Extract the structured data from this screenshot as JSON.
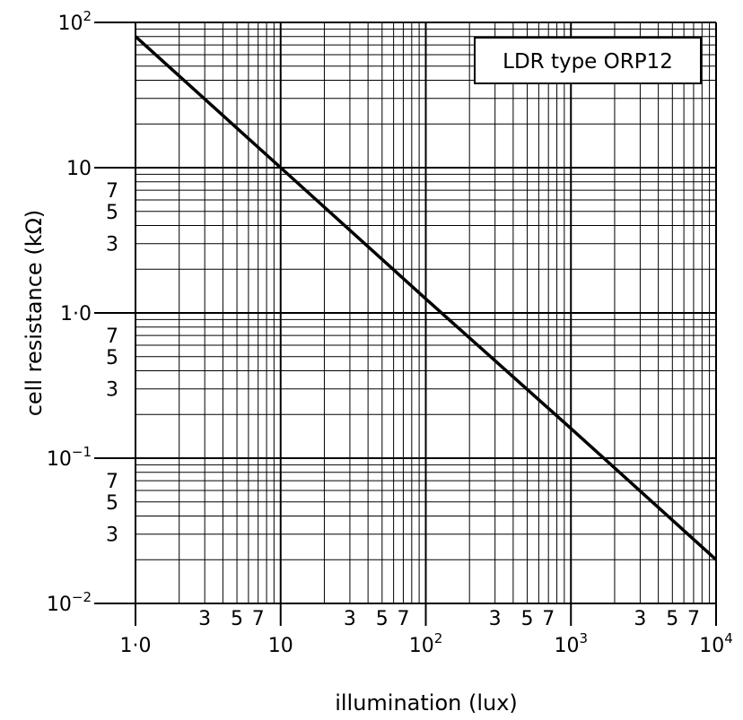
{
  "chart_data": {
    "type": "line",
    "x_scale": "log",
    "y_scale": "log",
    "xlabel": "illumination (lux)",
    "ylabel": "cell resistance (kΩ)",
    "xlim": [
      1,
      10000
    ],
    "ylim": [
      0.01,
      100
    ],
    "grid": true,
    "x_major_ticks": [
      {
        "value": 1,
        "base": "1·0",
        "exp": ""
      },
      {
        "value": 10,
        "base": "10",
        "exp": ""
      },
      {
        "value": 100,
        "base": "10",
        "exp": "2"
      },
      {
        "value": 1000,
        "base": "10",
        "exp": "3"
      },
      {
        "value": 10000,
        "base": "10",
        "exp": "4"
      }
    ],
    "x_minor_labels": [
      "3",
      "5",
      "7"
    ],
    "y_major_ticks": [
      {
        "value": 100,
        "base": "10",
        "exp": "2"
      },
      {
        "value": 10,
        "base": "10",
        "exp": ""
      },
      {
        "value": 1,
        "base": "1·0",
        "exp": ""
      },
      {
        "value": 0.1,
        "base": "10",
        "exp": "−1"
      },
      {
        "value": 0.01,
        "base": "10",
        "exp": "−2"
      }
    ],
    "y_minor_labels": [
      "3",
      "5",
      "7"
    ],
    "annotation": "LDR type ORP12",
    "series": [
      {
        "x": [
          1,
          10,
          100,
          1000,
          10000
        ],
        "y": [
          80,
          10,
          1.25,
          0.16,
          0.02
        ]
      }
    ]
  }
}
